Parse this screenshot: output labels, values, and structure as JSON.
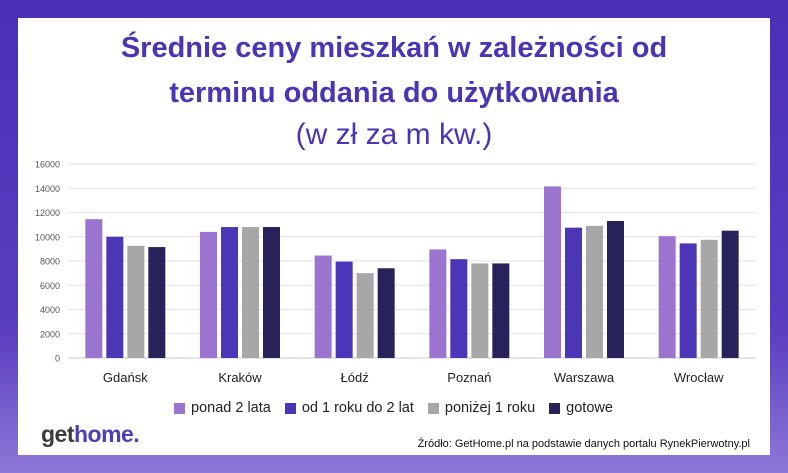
{
  "title_line1": "Średnie ceny mieszkań w zależności od",
  "title_line2": "terminu oddania do użytkowania",
  "subtitle": "(w zł za m kw.)",
  "logo": {
    "part1": "get",
    "part2": "home",
    "part3": "."
  },
  "source": "Źródło: GetHome.pl na podstawie danych portalu RynekPierwotny.pl",
  "colors": {
    "frame": "#4b30b8",
    "title": "#4a35b4",
    "series": [
      "#9a74cf",
      "#4c35b6",
      "#a7a7a7",
      "#28225a"
    ]
  },
  "chart_data": {
    "type": "bar",
    "categories": [
      "Gdańsk",
      "Kraków",
      "Łódź",
      "Poznań",
      "Warszawa",
      "Wrocław"
    ],
    "series": [
      {
        "name": "ponad 2 lata",
        "values": [
          11450,
          10400,
          8450,
          8950,
          14150,
          10050
        ]
      },
      {
        "name": "od 1 roku do 2 lat",
        "values": [
          10000,
          10800,
          7950,
          8150,
          10750,
          9450
        ]
      },
      {
        "name": "poniżej 1 roku",
        "values": [
          9250,
          10800,
          7000,
          7800,
          10900,
          9750
        ]
      },
      {
        "name": "gotowe",
        "values": [
          9150,
          10800,
          7400,
          7800,
          11300,
          10500
        ]
      }
    ],
    "ylim": [
      0,
      16000
    ],
    "yticks": [
      "0",
      "2000",
      "4000",
      "6000",
      "8000",
      "10000",
      "12000",
      "14000",
      "16000"
    ],
    "grid": true,
    "legend_position": "bottom"
  }
}
